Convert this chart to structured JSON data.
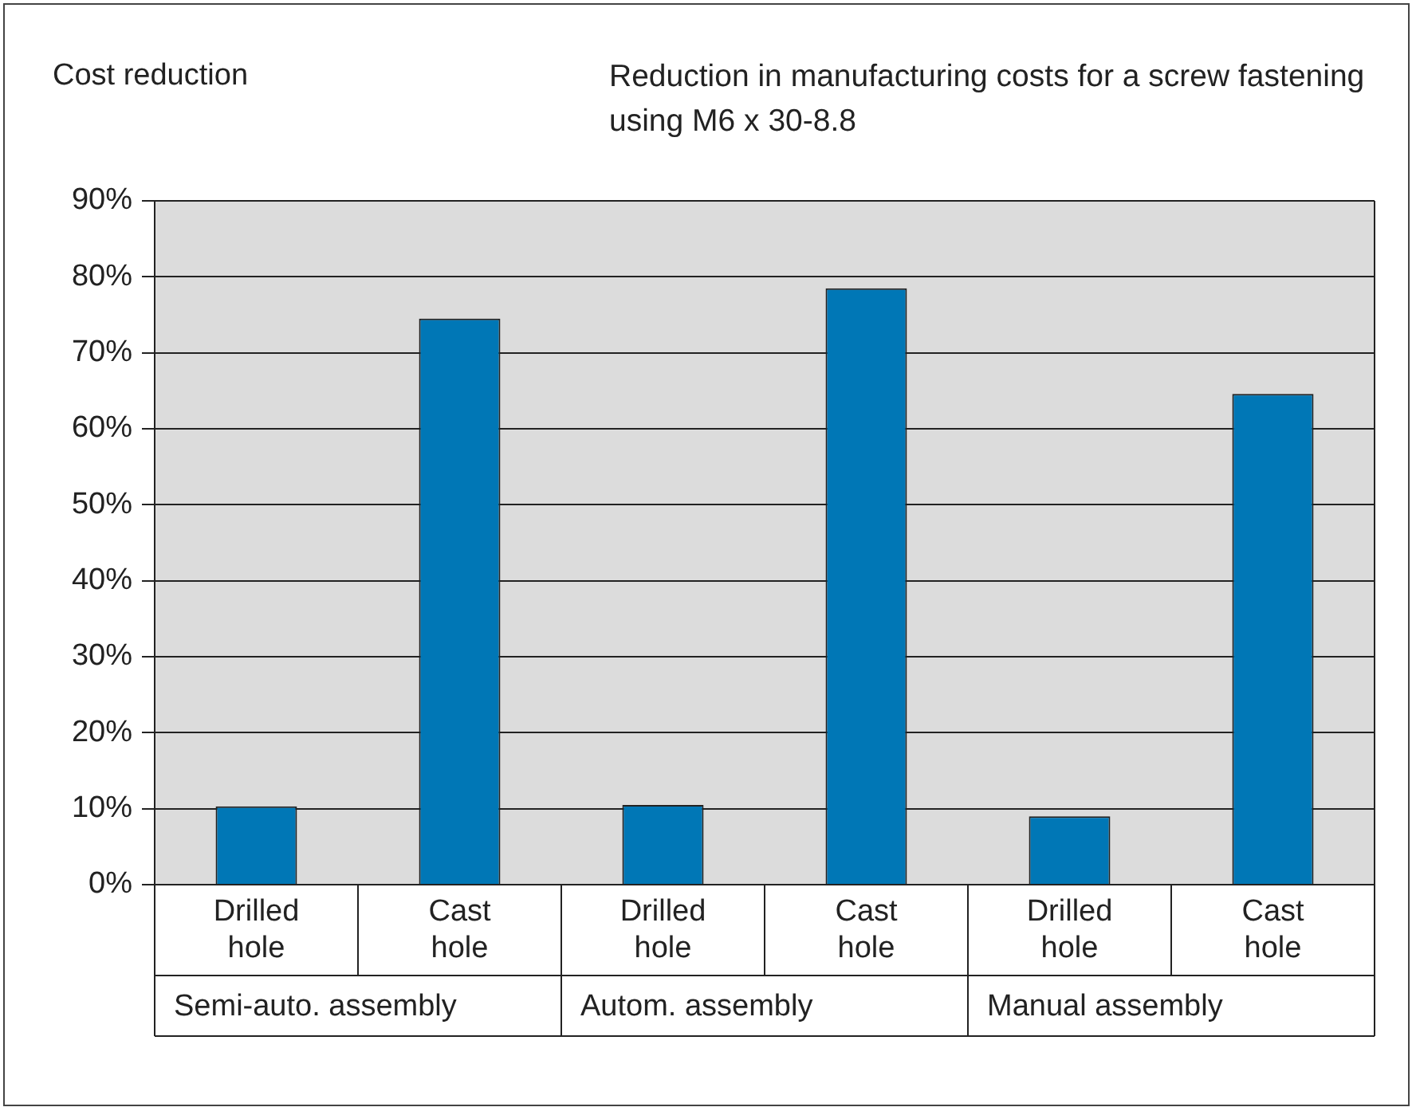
{
  "chart_data": {
    "type": "bar",
    "title": "Reduction in manufacturing costs for a screw fastening using M6 x 30-8.8",
    "ylabel": "Cost reduction",
    "categories": [
      "Drilled hole",
      "Cast hole",
      "Drilled hole",
      "Cast hole",
      "Drilled hole",
      "Cast hole"
    ],
    "values": [
      10.3,
      74.5,
      10.5,
      78.5,
      9,
      64.6
    ],
    "color": "#0077b6",
    "ylim": [
      0,
      90
    ],
    "yticks": [
      {
        "value": 0,
        "label": "0%"
      },
      {
        "value": 10,
        "label": "10%"
      },
      {
        "value": 20,
        "label": "20%"
      },
      {
        "value": 30,
        "label": "30%"
      },
      {
        "value": 40,
        "label": "40%"
      },
      {
        "value": 50,
        "label": "50%"
      },
      {
        "value": 60,
        "label": "60%"
      },
      {
        "value": 70,
        "label": "70%"
      },
      {
        "value": 80,
        "label": "80%"
      },
      {
        "value": 90,
        "label": "90%"
      }
    ],
    "grid": "y",
    "legend": false,
    "annotations": [
      "Semi-auto. assembly",
      "Autom. assembly",
      "Manual assembly"
    ]
  }
}
